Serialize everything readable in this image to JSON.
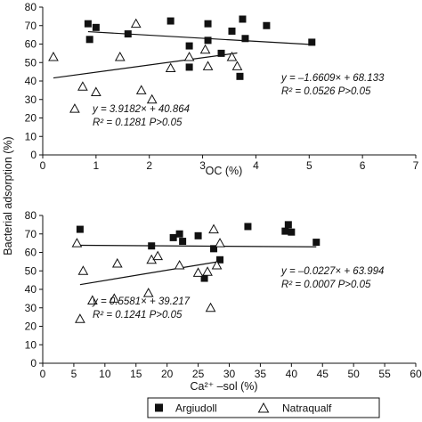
{
  "figure": {
    "shared_ylabel": "Bacterial adsorption (%)",
    "legend": {
      "items": [
        {
          "label": "Argiudoll",
          "marker": "filled-square"
        },
        {
          "label": "Natraqualf",
          "marker": "open-triangle"
        }
      ]
    }
  },
  "colors": {
    "ink": "#111111",
    "background": "#ffffff"
  },
  "chart_data": [
    {
      "type": "scatter",
      "xlabel": "OC (%)",
      "ylabel": "Bacterial adsorption (%)",
      "xlim": [
        0,
        7
      ],
      "ylim": [
        0,
        80
      ],
      "xticks": [
        0,
        1,
        2,
        3,
        4,
        5,
        6,
        7
      ],
      "yticks": [
        0,
        10,
        20,
        30,
        40,
        50,
        60,
        70,
        80
      ],
      "grid": false,
      "series": [
        {
          "name": "Argiudoll",
          "marker": "filled-square",
          "points": [
            [
              0.85,
              71
            ],
            [
              0.88,
              62.5
            ],
            [
              1.0,
              69
            ],
            [
              1.6,
              65.5
            ],
            [
              2.4,
              72.5
            ],
            [
              2.75,
              59
            ],
            [
              2.75,
              47.5
            ],
            [
              3.1,
              71
            ],
            [
              3.1,
              62
            ],
            [
              3.35,
              55
            ],
            [
              3.55,
              67
            ],
            [
              3.7,
              42.5
            ],
            [
              3.75,
              73.5
            ],
            [
              3.8,
              63
            ],
            [
              4.2,
              70
            ],
            [
              5.05,
              61
            ]
          ],
          "fit": {
            "slope": -1.6609,
            "intercept": 68.133,
            "x_range": [
              0.85,
              5.05
            ]
          }
        },
        {
          "name": "Natraqualf",
          "marker": "open-triangle",
          "points": [
            [
              0.2,
              53
            ],
            [
              0.6,
              25
            ],
            [
              0.75,
              37
            ],
            [
              1.0,
              34
            ],
            [
              1.45,
              53
            ],
            [
              1.75,
              71
            ],
            [
              1.85,
              35
            ],
            [
              2.05,
              30
            ],
            [
              2.4,
              47
            ],
            [
              2.75,
              53
            ],
            [
              3.05,
              57
            ],
            [
              3.1,
              48
            ],
            [
              3.55,
              53
            ],
            [
              3.65,
              48
            ]
          ],
          "fit": {
            "slope": 3.9182,
            "intercept": 40.864,
            "x_range": [
              0.2,
              3.65
            ]
          }
        }
      ],
      "annotations": [
        {
          "line1": "y = –1.6609× + 68.133",
          "line2": "R² = 0.0526 P>0.05"
        },
        {
          "line1": "y = 3.9182× + 40.864",
          "line2": "R² = 0.1281 P>0.05"
        }
      ]
    },
    {
      "type": "scatter",
      "xlabel": "Ca²⁺ –sol (%)",
      "ylabel": "Bacterial adsorption (%)",
      "xlim": [
        0,
        60
      ],
      "ylim": [
        0,
        80
      ],
      "xticks": [
        0,
        5,
        10,
        15,
        20,
        25,
        30,
        35,
        40,
        45,
        50,
        55,
        60
      ],
      "yticks": [
        0,
        10,
        20,
        30,
        40,
        50,
        60,
        70,
        80
      ],
      "grid": false,
      "series": [
        {
          "name": "Argiudoll",
          "marker": "filled-square",
          "points": [
            [
              6,
              72.5
            ],
            [
              17.5,
              63.5
            ],
            [
              21,
              68
            ],
            [
              22,
              70
            ],
            [
              22.5,
              66
            ],
            [
              25,
              69
            ],
            [
              26,
              46
            ],
            [
              27.5,
              62
            ],
            [
              28.5,
              56
            ],
            [
              33,
              74
            ],
            [
              39,
              71.5
            ],
            [
              39.5,
              75
            ],
            [
              40,
              71
            ],
            [
              44,
              65.5
            ]
          ],
          "fit": {
            "slope": -0.0227,
            "intercept": 63.994,
            "x_range": [
              6,
              44
            ]
          }
        },
        {
          "name": "Natraqualf",
          "marker": "open-triangle",
          "points": [
            [
              5.5,
              65
            ],
            [
              6,
              24
            ],
            [
              6.5,
              50
            ],
            [
              8,
              34
            ],
            [
              11.5,
              35
            ],
            [
              12,
              54
            ],
            [
              17,
              38
            ],
            [
              17.5,
              56
            ],
            [
              18.5,
              58
            ],
            [
              22,
              53
            ],
            [
              25,
              49
            ],
            [
              26.5,
              49.5
            ],
            [
              27,
              30
            ],
            [
              27.5,
              72.5
            ],
            [
              28,
              53
            ],
            [
              28.5,
              65
            ]
          ],
          "fit": {
            "slope": 0.5581,
            "intercept": 39.217,
            "x_range": [
              6,
              28.5
            ]
          }
        }
      ],
      "annotations": [
        {
          "line1": "y = –0.0227× + 63.994",
          "line2": "R² = 0.0007 P>0.05"
        },
        {
          "line1": "y = 0.5581× + 39.217",
          "line2": "R² = 0.1241 P>0.05"
        }
      ]
    }
  ]
}
